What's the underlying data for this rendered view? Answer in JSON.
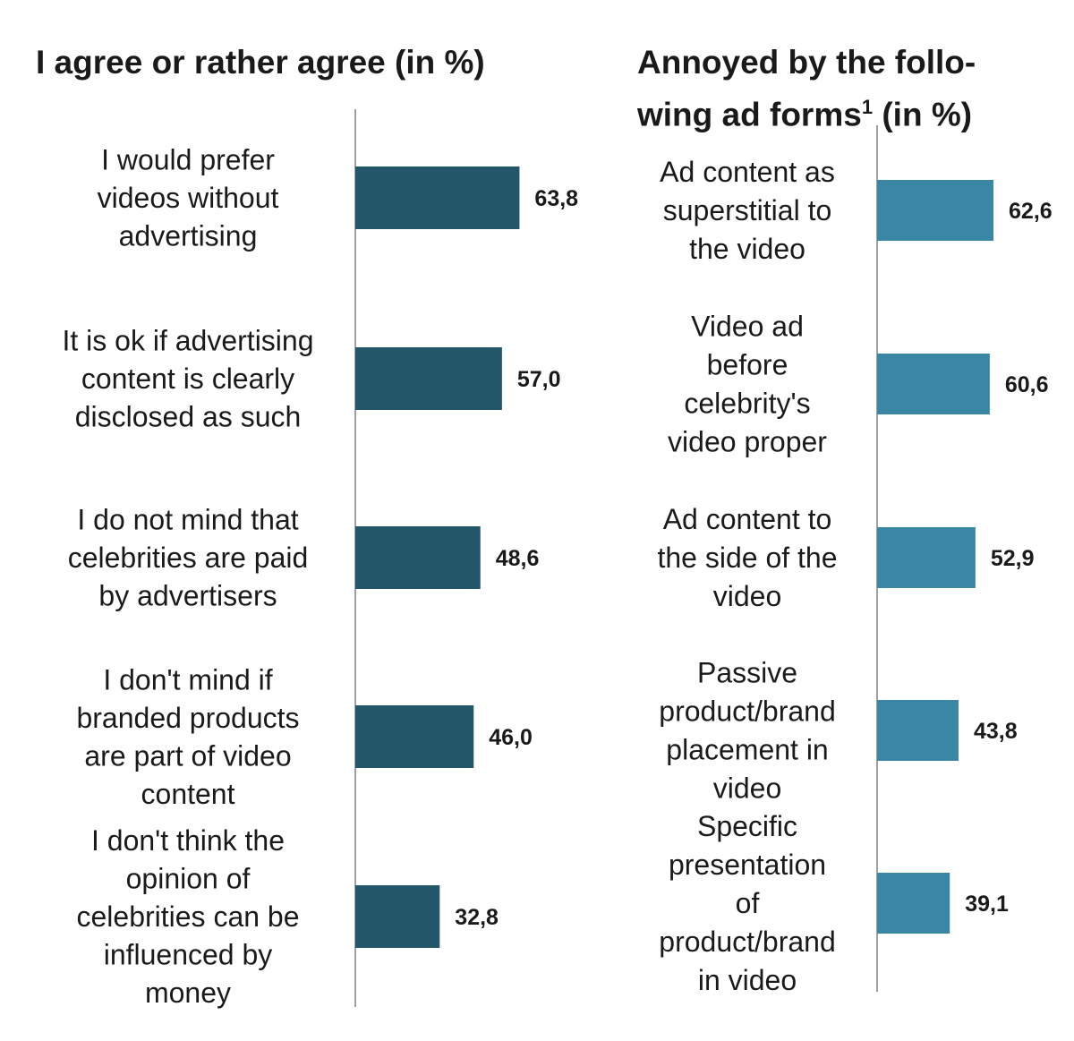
{
  "chart_data": [
    {
      "type": "bar",
      "orientation": "horizontal",
      "title": "I agree or rather agree (in %)",
      "categories": [
        "I would prefer videos without advertising",
        "It is ok if advertising content is clearly disclosed as such",
        "I do not mind that celebrities are paid by advertisers",
        "I don't mind if branded products are part of video content",
        "I don't think the opinion of celebrities can be influenced by money"
      ],
      "category_lines": [
        [
          "I would prefer",
          "videos without",
          "advertising"
        ],
        [
          "It is ok if advertising",
          "content is clearly",
          "disclosed as such"
        ],
        [
          "I do not mind that",
          "celebrities are paid",
          "by advertisers"
        ],
        [
          "I don't mind if",
          "branded products",
          "are part of video",
          "content"
        ],
        [
          "I don't think the",
          "opinion of",
          "celebrities can be",
          "influenced by",
          "money"
        ]
      ],
      "values": [
        63.8,
        57.0,
        48.6,
        46.0,
        32.8
      ],
      "value_labels": [
        "63,8",
        "57,0",
        "48,6",
        "46,0",
        "32,8"
      ],
      "xlim": [
        0,
        100
      ],
      "color": "#24566a",
      "grid": false,
      "legend": "none"
    },
    {
      "type": "bar",
      "orientation": "horizontal",
      "title": "Annoyed by the following ad forms¹ (in %)",
      "categories": [
        "Ad content as superstitial to the video",
        "Video ad before celebrity's video proper",
        "Ad content to the side of the video",
        "Passive product/brand placement in video",
        "Specific presentation of product/brand in video"
      ],
      "category_lines": [
        [
          "Ad content as",
          "superstitial to",
          "the video"
        ],
        [
          "Video ad",
          "before",
          "celebrity's",
          "video proper"
        ],
        [
          "Ad content to",
          "the side of the",
          "video"
        ],
        [
          "Passive",
          "product/brand",
          "placement in",
          "video"
        ],
        [
          "Specific",
          "presentation",
          "of",
          "product/brand",
          "in video"
        ]
      ],
      "values": [
        62.6,
        60.6,
        52.9,
        43.8,
        39.1
      ],
      "value_labels": [
        "62,6",
        "60,6",
        "52,9",
        "43,8",
        "39,1"
      ],
      "xlim": [
        0,
        100
      ],
      "color": "#3a87a5",
      "grid": false,
      "legend": "none"
    }
  ],
  "titles": {
    "left": {
      "line1": "I agree or rather agree (in %)"
    },
    "right": {
      "line1": "Annoyed by the follo-",
      "line2_text": "wing ad forms",
      "line2_sup": "1",
      "line2_suffix": " (in %)"
    }
  }
}
